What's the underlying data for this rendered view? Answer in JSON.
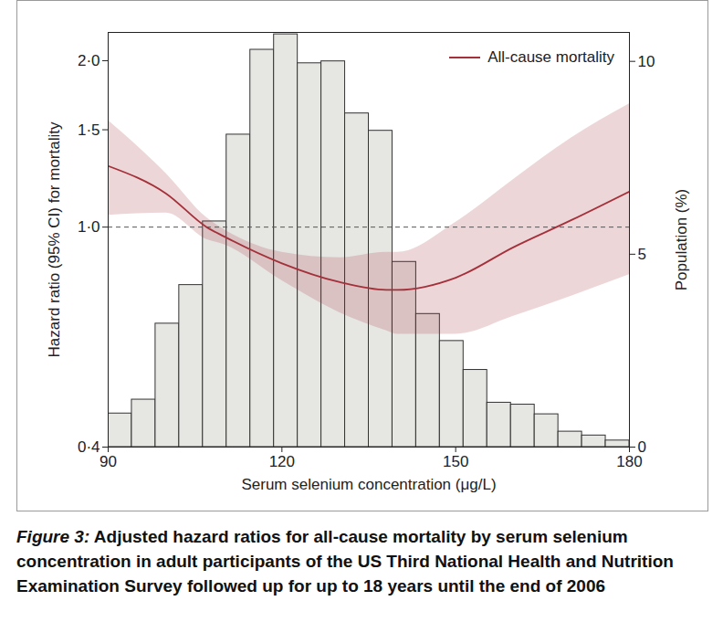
{
  "chart_data": {
    "type": "line",
    "caption_label": "Figure 3:",
    "caption": "Adjusted hazard ratios for all-cause mortality by serum selenium concentration in adult participants of the US Third National Health and Nutrition Examination Survey followed up for up to 18 years until the end of 2006",
    "x_label": "Serum selenium concentration (μg/L)",
    "y_label": "Hazard ratio (95% CI) for mortality",
    "y2_label": "Population (%)",
    "log": "y",
    "grid": false,
    "legend": "top-right",
    "xlim": [
      90,
      180
    ],
    "xticks": [
      90,
      120,
      150,
      180
    ],
    "ylim": [
      0.4,
      2.25
    ],
    "yticks": [
      {
        "value": 0.4,
        "label": "0·4"
      },
      {
        "value": 1.0,
        "label": "1·0"
      },
      {
        "value": 1.5,
        "label": "1·5"
      },
      {
        "value": 2.0,
        "label": "2·0"
      }
    ],
    "y2lim": [
      0,
      10.75
    ],
    "y2ticks": [
      0,
      5,
      10
    ],
    "reference_lines": [
      {
        "value": 1.0,
        "line_style": "dashed"
      }
    ],
    "series": [
      {
        "type": "histogram",
        "axis": "y2",
        "color": "#e6e6e3",
        "bins": [
          90,
          94.09,
          98.18,
          102.27,
          106.36,
          110.45,
          114.55,
          118.64,
          122.73,
          126.82,
          130.91,
          135,
          139.09,
          143.18,
          147.27,
          151.36,
          155.45,
          159.55,
          163.64,
          167.73,
          171.82,
          175.91,
          180
        ],
        "values": [
          0.87,
          1.23,
          3.2,
          4.2,
          5.85,
          8.1,
          10.3,
          10.7,
          9.95,
          10.0,
          8.65,
          8.2,
          4.8,
          3.45,
          2.75,
          2.0,
          1.15,
          1.1,
          0.85,
          0.4,
          0.3,
          0.17
        ]
      },
      {
        "type": "line",
        "name": "All-cause mortality",
        "color": "#a4303a",
        "line_style": "solid",
        "x": [
          90,
          100,
          107,
          110,
          120,
          130,
          138,
          140,
          150,
          160,
          170,
          180
        ],
        "values": [
          1.29,
          1.15,
          1.0,
          0.962,
          0.86,
          0.795,
          0.77,
          0.77,
          0.81,
          0.92,
          1.03,
          1.16
        ],
        "ci_lower": [
          1.05,
          1.06,
          0.95,
          0.93,
          0.8,
          0.7,
          0.65,
          0.64,
          0.64,
          0.69,
          0.75,
          0.82
        ],
        "ci_upper": [
          1.56,
          1.25,
          1.04,
          0.99,
          0.9,
          0.88,
          0.9,
          0.9,
          1.02,
          1.22,
          1.45,
          1.67
        ]
      }
    ]
  }
}
